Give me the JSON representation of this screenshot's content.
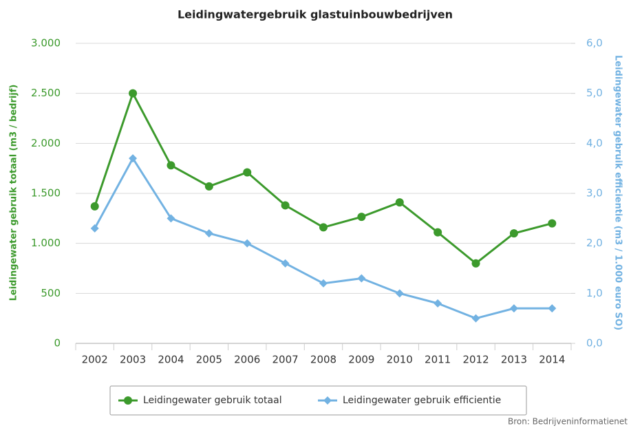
{
  "chart_data": {
    "type": "line",
    "title": "Leidingwatergebruik glastuinbouwbedrijven",
    "y_label": "Leidingewater gebruik totaal (m3 / bedrijf)",
    "y2_label": "Leidingewater gebruik efficientie (m3 / 1.000 euro SO)",
    "source": "Bron: Bedrijveninformatienet",
    "categories": [
      "2002",
      "2003",
      "2004",
      "2005",
      "2006",
      "2007",
      "2008",
      "2009",
      "2010",
      "2011",
      "2012",
      "2013",
      "2014"
    ],
    "series": [
      {
        "name": "Leidingewater gebruik totaal",
        "color": "#3c9a2c",
        "marker": "circle",
        "values": [
          1370,
          2500,
          1780,
          1570,
          1710,
          1380,
          1160,
          1265,
          1410,
          1110,
          800,
          1100,
          1200
        ]
      },
      {
        "name": "Leidingewater gebruik efficientie",
        "color": "#72b2e2",
        "marker": "diamond",
        "axis": "y2",
        "values": [
          2.3,
          3.7,
          2.5,
          2.2,
          2.0,
          1.6,
          1.2,
          1.3,
          1.0,
          0.8,
          0.5,
          0.7,
          0.7
        ]
      }
    ],
    "ylim": [
      0,
      3000
    ],
    "yticks": [
      0,
      {
        "value": 500,
        "label": "500"
      },
      {
        "value": 1000,
        "label": "1.000"
      },
      {
        "value": 1500,
        "label": "1.500"
      },
      {
        "value": 2000,
        "label": "2.000"
      },
      {
        "value": 2500,
        "label": "2.500"
      },
      {
        "value": 3000,
        "label": "3.000"
      }
    ],
    "y2lim": [
      0,
      6
    ],
    "y2ticks": [
      {
        "value": 0,
        "label": "0,0"
      },
      {
        "value": 1,
        "label": "1,0"
      },
      {
        "value": 2,
        "label": "2,0"
      },
      {
        "value": 3,
        "label": "3,0"
      },
      {
        "value": 4,
        "label": "4,0"
      },
      {
        "value": 5,
        "label": "5,0"
      },
      {
        "value": 6,
        "label": "6,0"
      }
    ],
    "grid": true,
    "legend": "bottom"
  }
}
